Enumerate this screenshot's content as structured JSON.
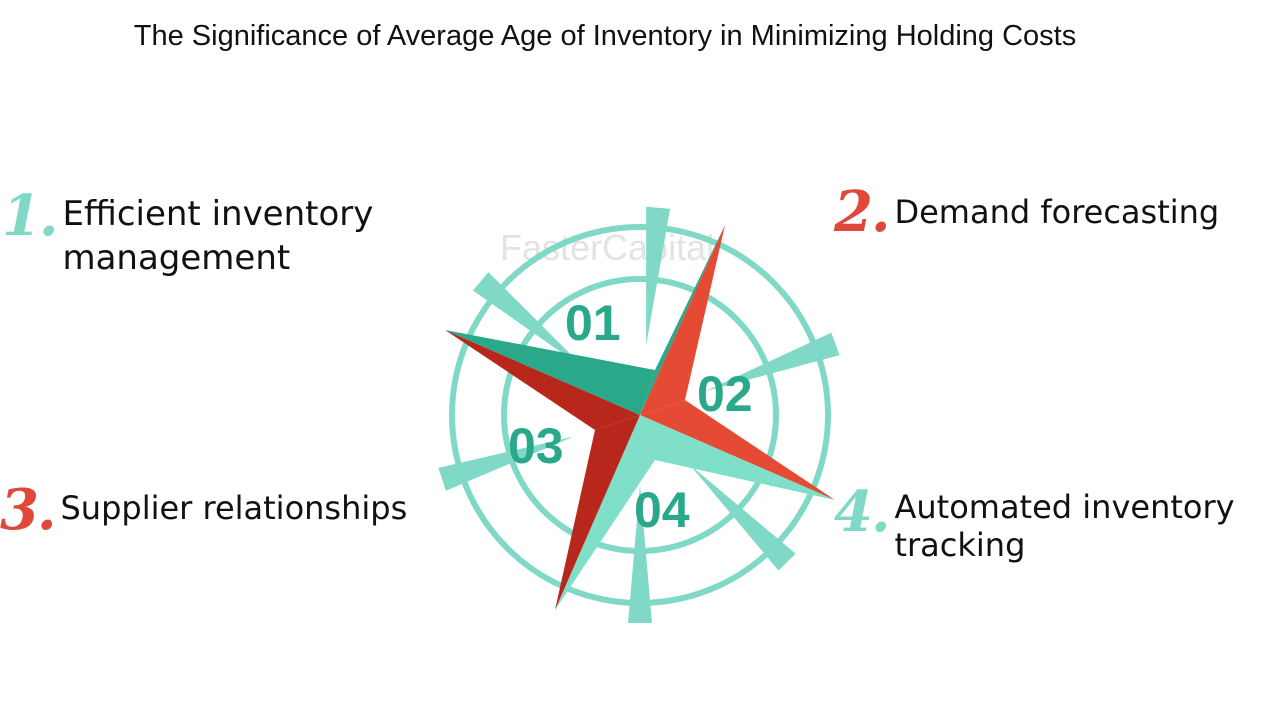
{
  "title": "The Significance of Average Age of Inventory in Minimizing Holding Costs",
  "watermark": "FasterCapital",
  "items": [
    {
      "number": "1.",
      "label": "Efficient inventory\nmanagement",
      "color": "#7fd9c6"
    },
    {
      "number": "2.",
      "label": "Demand forecasting",
      "color": "#e0483a"
    },
    {
      "number": "3.",
      "label": "Supplier relationships",
      "color": "#e0483a"
    },
    {
      "number": "4.",
      "label": "Automated inventory\ntracking",
      "color": "#7fd9c6"
    }
  ],
  "diagram": {
    "segments": [
      "01",
      "02",
      "03",
      "04"
    ],
    "colors": {
      "ring": "#7fd9c6",
      "teal_dark": "#2aa88a",
      "teal_light": "#7fdfc8",
      "red": "#e54a35",
      "red_dark": "#b8271c"
    }
  }
}
